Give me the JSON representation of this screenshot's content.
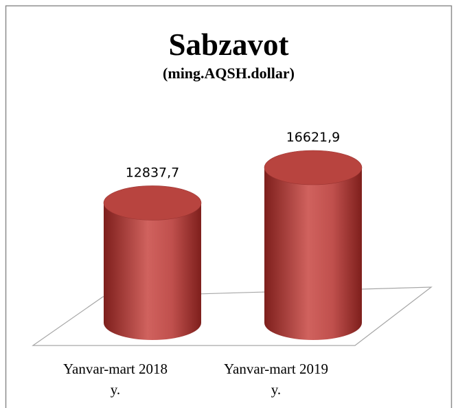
{
  "chart_data": {
    "type": "bar3d",
    "title": "Sabzavot",
    "subtitle": "(ming.AQSH.dollar)",
    "categories": [
      "Yanvar-mart 2018 y.",
      "Yanvar-mart 2019 y."
    ],
    "values": [
      12837.7,
      16621.9
    ],
    "value_labels": [
      "12837,7",
      "16621,9"
    ],
    "color": "#c0504d"
  }
}
